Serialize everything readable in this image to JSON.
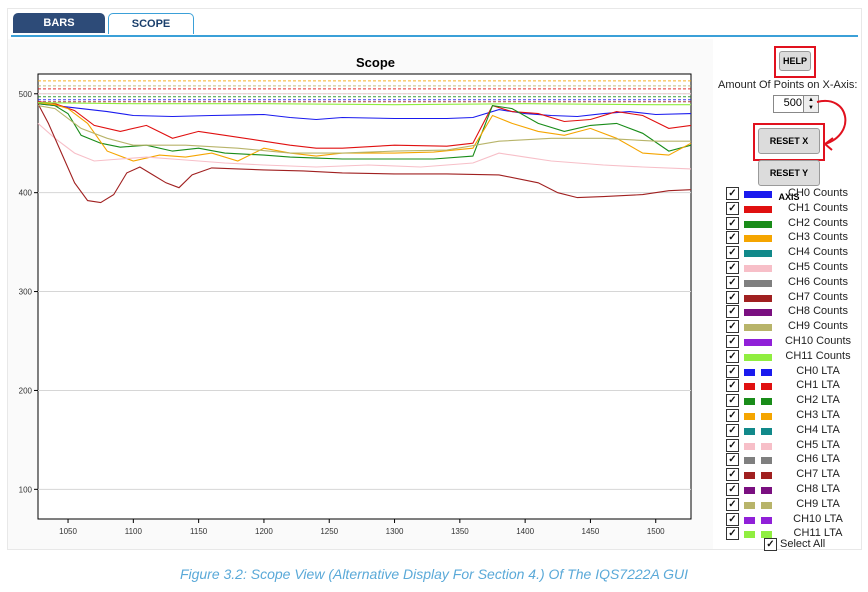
{
  "tabs": [
    {
      "label": "BARS"
    },
    {
      "label": "SCOPE"
    }
  ],
  "chart_data": {
    "type": "line",
    "title": "Scope",
    "xticks": [
      1050,
      1100,
      1150,
      1200,
      1250,
      1300,
      1350,
      1400,
      1450,
      1500
    ],
    "yticks": [
      100,
      200,
      300,
      400,
      500
    ],
    "xlim": [
      1027,
      1527
    ],
    "ylim": [
      70,
      520
    ],
    "series": [
      {
        "name": "CH0 Counts",
        "color": "#1a1aee",
        "x": [
          1027,
          1040,
          1060,
          1080,
          1100,
          1130,
          1160,
          1200,
          1220,
          1240,
          1260,
          1300,
          1340,
          1360,
          1380,
          1400,
          1420,
          1440,
          1460,
          1480,
          1500,
          1527
        ],
        "y": [
          490,
          488,
          485,
          482,
          478,
          477,
          478,
          479,
          476,
          474,
          476,
          475,
          475,
          476,
          484,
          480,
          478,
          477,
          480,
          482,
          479,
          480
        ]
      },
      {
        "name": "CH1 Counts",
        "color": "#e01010",
        "x": [
          1027,
          1040,
          1055,
          1070,
          1090,
          1110,
          1130,
          1150,
          1170,
          1200,
          1220,
          1240,
          1260,
          1300,
          1340,
          1360,
          1375,
          1390,
          1410,
          1430,
          1450,
          1470,
          1490,
          1510,
          1527
        ],
        "y": [
          492,
          490,
          483,
          468,
          462,
          468,
          455,
          462,
          458,
          452,
          448,
          445,
          445,
          448,
          447,
          450,
          488,
          482,
          480,
          472,
          474,
          482,
          478,
          465,
          468
        ]
      },
      {
        "name": "CH2 Counts",
        "color": "#198c19",
        "x": [
          1027,
          1040,
          1050,
          1060,
          1075,
          1090,
          1110,
          1130,
          1150,
          1170,
          1200,
          1220,
          1240,
          1260,
          1300,
          1330,
          1360,
          1375,
          1390,
          1410,
          1430,
          1450,
          1470,
          1490,
          1510,
          1527
        ],
        "y": [
          490,
          488,
          480,
          458,
          450,
          446,
          448,
          442,
          445,
          440,
          438,
          436,
          435,
          434,
          434,
          434,
          437,
          488,
          485,
          470,
          462,
          468,
          470,
          460,
          442,
          448
        ]
      },
      {
        "name": "CH3 Counts",
        "color": "#f5a500",
        "x": [
          1027,
          1040,
          1050,
          1065,
          1080,
          1100,
          1120,
          1140,
          1160,
          1180,
          1200,
          1220,
          1240,
          1260,
          1300,
          1330,
          1360,
          1375,
          1390,
          1410,
          1430,
          1450,
          1470,
          1490,
          1510,
          1527
        ],
        "y": [
          491,
          489,
          485,
          470,
          442,
          432,
          438,
          436,
          440,
          432,
          445,
          440,
          437,
          440,
          440,
          441,
          445,
          478,
          470,
          462,
          458,
          465,
          455,
          440,
          438,
          450
        ]
      },
      {
        "name": "CH5 Counts",
        "color": "#f7bfc8",
        "x": [
          1027,
          1040,
          1055,
          1070,
          1090,
          1110,
          1140,
          1170,
          1200,
          1240,
          1280,
          1320,
          1360,
          1380,
          1400,
          1420,
          1440,
          1460,
          1490,
          1527
        ],
        "y": [
          470,
          455,
          440,
          432,
          434,
          436,
          433,
          430,
          428,
          426,
          428,
          426,
          430,
          440,
          436,
          432,
          430,
          428,
          426,
          424
        ]
      },
      {
        "name": "CH7 Counts",
        "color": "#a02020",
        "x": [
          1027,
          1035,
          1045,
          1055,
          1065,
          1075,
          1085,
          1095,
          1105,
          1115,
          1125,
          1135,
          1145,
          1160,
          1180,
          1200,
          1230,
          1260,
          1300,
          1340,
          1380,
          1410,
          1425,
          1440,
          1460,
          1490,
          1510,
          1527
        ],
        "y": [
          490,
          470,
          440,
          410,
          392,
          390,
          398,
          420,
          426,
          418,
          410,
          405,
          418,
          425,
          424,
          423,
          422,
          420,
          419,
          419,
          418,
          410,
          400,
          395,
          396,
          398,
          402,
          403
        ]
      },
      {
        "name": "CH9 Counts",
        "color": "#b8b46a",
        "x": [
          1027,
          1040,
          1060,
          1080,
          1100,
          1140,
          1180,
          1220,
          1260,
          1300,
          1340,
          1380,
          1420,
          1460,
          1500,
          1527
        ],
        "y": [
          488,
          485,
          465,
          455,
          448,
          448,
          445,
          440,
          440,
          442,
          443,
          452,
          455,
          455,
          452,
          452
        ]
      },
      {
        "name": "CH11 Counts",
        "color": "#90ee40",
        "x": [
          1027,
          1100,
          1200,
          1300,
          1400,
          1500,
          1527
        ],
        "y": [
          491,
          490,
          490,
          489,
          490,
          489,
          489
        ]
      }
    ],
    "lta_levels": [
      {
        "name": "CH0 LTA",
        "color": "#1a1aee",
        "y": 494
      },
      {
        "name": "CH1 LTA",
        "color": "#e01010",
        "y": 505
      },
      {
        "name": "CH2 LTA",
        "color": "#198c19",
        "y": 497
      },
      {
        "name": "CH3 LTA",
        "color": "#f5a500",
        "y": 513
      },
      {
        "name": "CH5 LTA",
        "color": "#f7bfc8",
        "y": 500
      },
      {
        "name": "CH7 LTA",
        "color": "#a02020",
        "y": 492
      },
      {
        "name": "CH9 LTA",
        "color": "#b8b46a",
        "y": 508
      }
    ]
  },
  "controls": {
    "help_label": "HELP",
    "points_label": "Amount Of Points on X-Axis:",
    "points_value": "500",
    "reset_x_label": "RESET X AXIS",
    "reset_y_label": "RESET Y AXIS",
    "select_all_label": "Select All"
  },
  "legend": {
    "counts": [
      {
        "label": "CH0 Counts",
        "color": "#1a1aee"
      },
      {
        "label": "CH1 Counts",
        "color": "#e01010"
      },
      {
        "label": "CH2 Counts",
        "color": "#198c19"
      },
      {
        "label": "CH3 Counts",
        "color": "#f5a500"
      },
      {
        "label": "CH4 Counts",
        "color": "#11898a"
      },
      {
        "label": "CH5 Counts",
        "color": "#f7bfc8"
      },
      {
        "label": "CH6 Counts",
        "color": "#7f7f7f"
      },
      {
        "label": "CH7 Counts",
        "color": "#a02020"
      },
      {
        "label": "CH8 Counts",
        "color": "#7a0f80"
      },
      {
        "label": "CH9 Counts",
        "color": "#b8b46a"
      },
      {
        "label": "CH10 Counts",
        "color": "#9020d8"
      },
      {
        "label": "CH11 Counts",
        "color": "#90ee40"
      }
    ],
    "lta": [
      {
        "label": "CH0 LTA",
        "color": "#1a1aee"
      },
      {
        "label": "CH1 LTA",
        "color": "#e01010"
      },
      {
        "label": "CH2 LTA",
        "color": "#198c19"
      },
      {
        "label": "CH3 LTA",
        "color": "#f5a500"
      },
      {
        "label": "CH4 LTA",
        "color": "#11898a"
      },
      {
        "label": "CH5 LTA",
        "color": "#f7bfc8"
      },
      {
        "label": "CH6 LTA",
        "color": "#7f7f7f"
      },
      {
        "label": "CH7 LTA",
        "color": "#a02020"
      },
      {
        "label": "CH8 LTA",
        "color": "#7a0f80"
      },
      {
        "label": "CH9 LTA",
        "color": "#b8b46a"
      },
      {
        "label": "CH10 LTA",
        "color": "#9020d8"
      },
      {
        "label": "CH11 LTA",
        "color": "#90ee40"
      }
    ]
  },
  "caption": "Figure 3.2: Scope View (Alternative Display For Section 4.) Of The IQS7222A GUI"
}
